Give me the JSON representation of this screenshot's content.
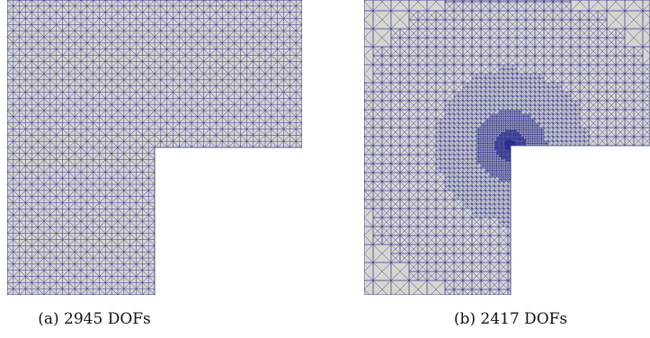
{
  "figure": {
    "panels": [
      {
        "id": "a",
        "caption": "(a) 2945 DOFs",
        "mesh": "uniform"
      },
      {
        "id": "b",
        "caption": "(b) 2417 DOFs",
        "mesh": "adaptive-refined-at-reentrant-corner"
      }
    ],
    "colors": {
      "domain_fill": "#d6d6d0",
      "mesh_line": "#2b2f8f"
    }
  }
}
